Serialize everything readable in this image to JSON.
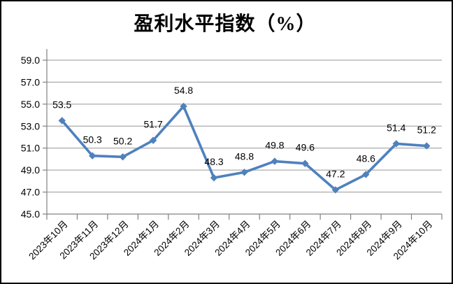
{
  "chart_data": {
    "type": "line",
    "title": "盈利水平指数（%）",
    "categories": [
      "2023年10月",
      "2023年11月",
      "2023年12月",
      "2024年1月",
      "2024年2月",
      "2024年3月",
      "2024年4月",
      "2024年5月",
      "2024年6月",
      "2024年7月",
      "2024年8月",
      "2024年9月",
      "2024年10月"
    ],
    "values": [
      53.5,
      50.3,
      50.2,
      51.7,
      54.8,
      48.3,
      48.8,
      49.8,
      49.6,
      47.2,
      48.6,
      51.4,
      51.2
    ],
    "data_labels": [
      "53.5",
      "50.3",
      "50.2",
      "51.7",
      "54.8",
      "48.3",
      "48.8",
      "49.8",
      "49.6",
      "47.2",
      "48.6",
      "51.4",
      "51.2"
    ],
    "yticks": [
      "59.0",
      "57.0",
      "55.0",
      "53.0",
      "51.0",
      "49.0",
      "47.0",
      "45.0"
    ],
    "ylim": [
      45.0,
      59.0
    ],
    "ytick_step": 2.0,
    "xlabel": "",
    "ylabel": "",
    "legend": "none",
    "grid": "horizontal",
    "marker": "diamond",
    "colors": {
      "line": "#4F81BD",
      "marker": "#4F81BD",
      "gridline": "#969696",
      "axis": "#808080",
      "text": "#000000",
      "background": "#FFFFFF",
      "frame_border": "#000000"
    }
  }
}
